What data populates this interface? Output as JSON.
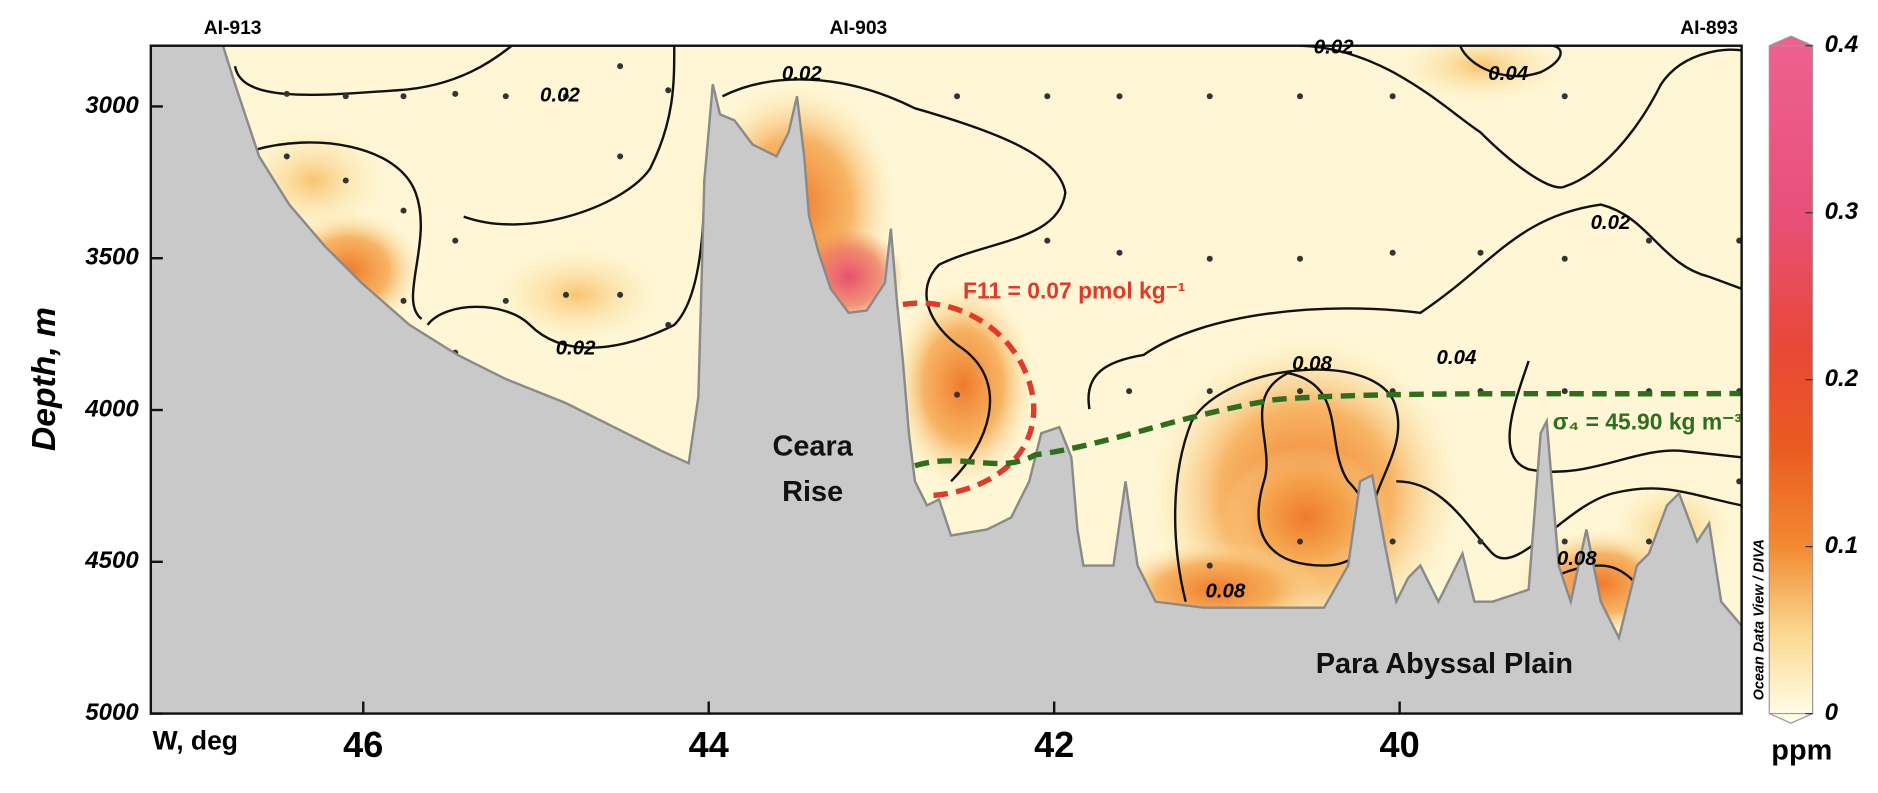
{
  "chart_data": {
    "type": "section",
    "y_label": "Depth, m",
    "x_label": "W, deg",
    "xlim": [
      47.23,
      38.02
    ],
    "xticks": [
      46,
      44,
      42,
      40
    ],
    "ylim": [
      5000,
      2800
    ],
    "yticks": [
      3000,
      3500,
      4000,
      4500,
      5000
    ],
    "stations": [
      "AI-913",
      "AI-903",
      "AI-893"
    ],
    "colorbar": {
      "label": "ppm",
      "clim": [
        0,
        0.4
      ],
      "ticks": [
        0,
        0.1,
        0.2,
        0.3,
        0.4
      ],
      "credit": "Ocean Data View / DIVA"
    },
    "annotations": [
      "Ceara",
      "Rise",
      "Para Abyssal Plain",
      "F11 = 0.07 pmol kg⁻¹",
      "σ₄ = 45.90 kg m⁻³"
    ],
    "contour_labels": [
      "0.02",
      "0.02",
      "0.02",
      "0.02",
      "0.04",
      "0.02",
      "0.04",
      "0.08",
      "0.08",
      "0.08"
    ]
  }
}
